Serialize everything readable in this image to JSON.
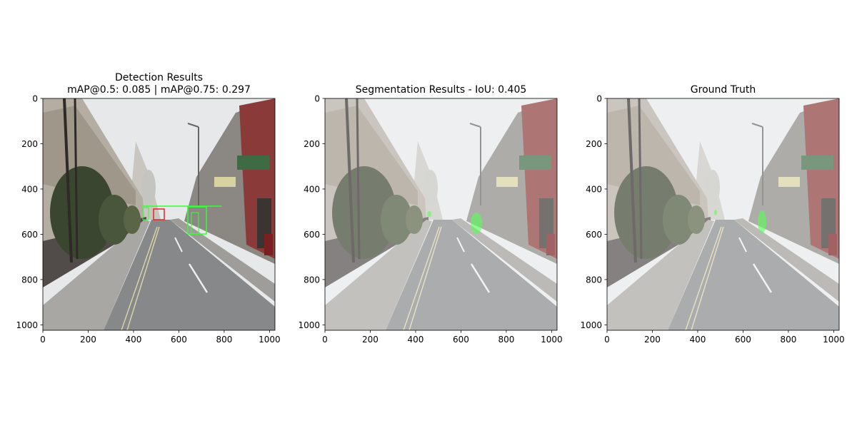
{
  "chart_data": [
    {
      "type": "image",
      "title": [
        "Detection Results",
        "mAP@0.5: 0.085 | mAP@0.75: 0.297"
      ],
      "xlim": [
        0,
        1024
      ],
      "ylim": [
        1024,
        0
      ],
      "xticks": [
        0,
        200,
        400,
        600,
        800,
        1000
      ],
      "yticks": [
        0,
        200,
        400,
        600,
        800,
        1000
      ]
    },
    {
      "type": "image",
      "title": [
        "Segmentation Results - IoU: 0.405"
      ],
      "xlim": [
        0,
        1024
      ],
      "ylim": [
        1024,
        0
      ],
      "xticks": [
        0,
        200,
        400,
        600,
        800,
        1000
      ],
      "yticks": [
        0,
        200,
        400,
        600,
        800,
        1000
      ]
    },
    {
      "type": "image",
      "title": [
        "Ground Truth"
      ],
      "xlim": [
        0,
        1024
      ],
      "ylim": [
        1024,
        0
      ],
      "xticks": [
        0,
        200,
        400,
        600,
        800,
        1000
      ],
      "yticks": [
        0,
        200,
        400,
        600,
        800,
        1000
      ]
    }
  ]
}
